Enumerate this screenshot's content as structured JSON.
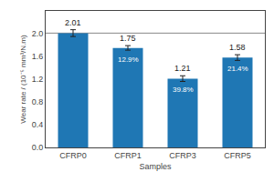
{
  "chart_data": {
    "type": "bar",
    "categories": [
      "CFRP0",
      "CFRP1",
      "CFRP3",
      "CFRP5"
    ],
    "values": [
      2.01,
      1.75,
      1.21,
      1.58
    ],
    "errors": [
      0.06,
      0.04,
      0.05,
      0.05
    ],
    "data_labels": true,
    "annotations": [
      {
        "category": "CFRP1",
        "text": "12.9%"
      },
      {
        "category": "CFRP3",
        "text": "39.8%"
      },
      {
        "category": "CFRP5",
        "text": "21.4%"
      }
    ],
    "reference_line": 2.01,
    "xlabel": "Samples",
    "ylabel": "Wear rate / (10⁻⁵ mm³/N.m)",
    "ylim": [
      0,
      2.4
    ],
    "yticks": [
      {
        "value": 0,
        "label": "0.0"
      },
      0.4,
      0.8,
      1.2,
      1.6,
      {
        "value": 2,
        "label": "2.0"
      }
    ],
    "grid": false
  }
}
